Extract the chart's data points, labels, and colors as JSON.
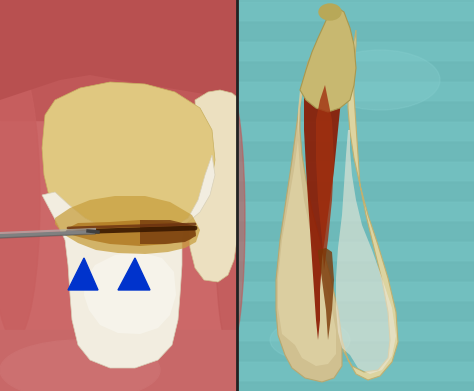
{
  "figsize": [
    4.74,
    3.91
  ],
  "dpi": 100,
  "left_bg": "#d4786a",
  "left_gum_top": "#c86060",
  "left_gum_dark": "#b05050",
  "tooth_main_color": "#f0e8cc",
  "tooth_mid_color": "#e8d8a8",
  "tooth_lower_color": "#f5f0e8",
  "tooth_upper_stain": "#c8a860",
  "fracture_brown": "#7a4010",
  "fracture_amber": "#c87820",
  "probe_color": "#909090",
  "arrow_blue": "#0033CC",
  "second_tooth_color": "#ede0c0",
  "right_bg": "#6abcbc",
  "right_bg2": "#78c8c8",
  "extr_tooth_left_color": "#d8c898",
  "extr_tooth_right_color": "#e8e0c0",
  "extr_fracture": "#8b2000",
  "extr_stain": "#a04010",
  "divider_color": "#222222"
}
